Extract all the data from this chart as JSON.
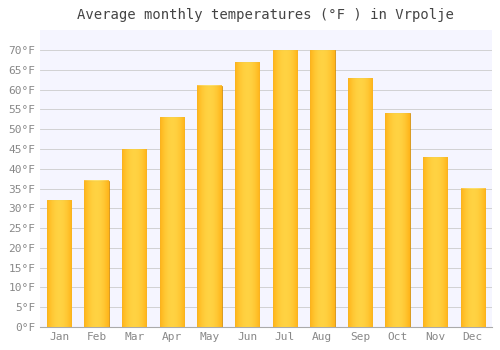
{
  "title": "Average monthly temperatures (°F ) in Vrpolje",
  "months": [
    "Jan",
    "Feb",
    "Mar",
    "Apr",
    "May",
    "Jun",
    "Jul",
    "Aug",
    "Sep",
    "Oct",
    "Nov",
    "Dec"
  ],
  "values": [
    32,
    37,
    45,
    53,
    61,
    67,
    70,
    70,
    63,
    54,
    43,
    35
  ],
  "bar_color": "#FFA500",
  "bar_edge_color": "#CC8800",
  "bar_highlight_color": "#FFD050",
  "ylim": [
    0,
    75
  ],
  "yticks": [
    0,
    5,
    10,
    15,
    20,
    25,
    30,
    35,
    40,
    45,
    50,
    55,
    60,
    65,
    70
  ],
  "ytick_labels": [
    "0°F",
    "5°F",
    "10°F",
    "15°F",
    "20°F",
    "25°F",
    "30°F",
    "35°F",
    "40°F",
    "45°F",
    "50°F",
    "55°F",
    "60°F",
    "65°F",
    "70°F"
  ],
  "background_color": "#ffffff",
  "plot_bg_color": "#f5f5ff",
  "grid_color": "#cccccc",
  "title_fontsize": 10,
  "tick_fontsize": 8,
  "font_family": "monospace",
  "title_color": "#444444",
  "tick_color": "#888888"
}
